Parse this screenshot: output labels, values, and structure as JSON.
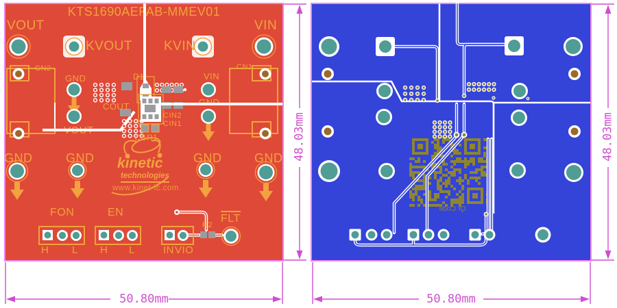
{
  "left_board": {
    "title": "KTS1690AEFAB-MMEV01",
    "silk": {
      "vout": "VOUT",
      "vin": "VIN",
      "kvout": "KVOUT",
      "kvin": "KVIN",
      "cn2": "CN2",
      "cn1": "CN1",
      "gnd": "GND",
      "d1": "D1",
      "cout": "COUT",
      "cin2": "CIN2",
      "cin1": "CIN1",
      "cb": "CB",
      "r1": "R1",
      "fon": "FON",
      "en": "EN",
      "h": "H",
      "l": "L",
      "in": "IN",
      "vio": "VIO",
      "r2": "R2",
      "flt": "FLT"
    },
    "gnd_row": [
      "GND",
      "GND",
      "GND",
      "GND"
    ],
    "logo": {
      "name": "kinetic",
      "tagline": "technologies",
      "url": "www.kinet-ic.com"
    }
  },
  "right_board": {
    "qr_label": "Qr Code"
  },
  "dimensions": {
    "width": "50.80mm",
    "height": "48.03mm"
  },
  "colors": {
    "red": "#DF4937",
    "blue": "#3443D8",
    "silk": "#F2A23E",
    "teal": "#4F9D95",
    "gray": "#9C9CA0",
    "brown": "#9A6A2A",
    "olive": "#8E8530",
    "pink": "#EE82EE",
    "dim": "#CF4FCF"
  }
}
